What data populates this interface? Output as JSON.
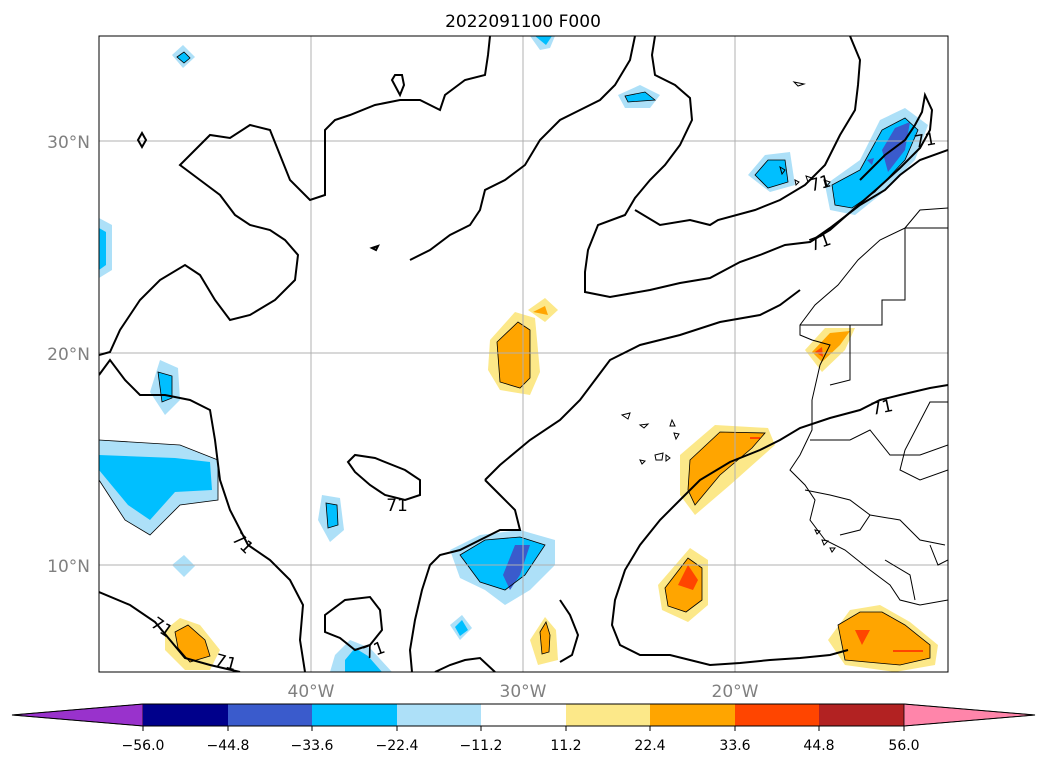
{
  "title": "2022091100 F000",
  "map": {
    "lon_range": [
      -50,
      -10
    ],
    "lat_range": [
      5,
      35
    ],
    "grid": true,
    "lat_labels": [
      "30°N",
      "20°N",
      "10°N"
    ],
    "lon_labels": [
      "40°W",
      "30°W",
      "20°W"
    ],
    "contour_label": "71",
    "contour_label_count": 9
  },
  "colorbar": {
    "tick_labels": [
      "−56.0",
      "−44.8",
      "−33.6",
      "−22.4",
      "−11.2",
      "11.2",
      "22.4",
      "33.6",
      "44.8",
      "56.0"
    ],
    "colors": [
      "#9932CC",
      "#00008B",
      "#3A5BCC",
      "#00BFFF",
      "#ADE0F8",
      "#FFFFFF",
      "#FCE889",
      "#FFA500",
      "#FF4500",
      "#B22222",
      "#FF85AA"
    ],
    "extend": "both"
  }
}
